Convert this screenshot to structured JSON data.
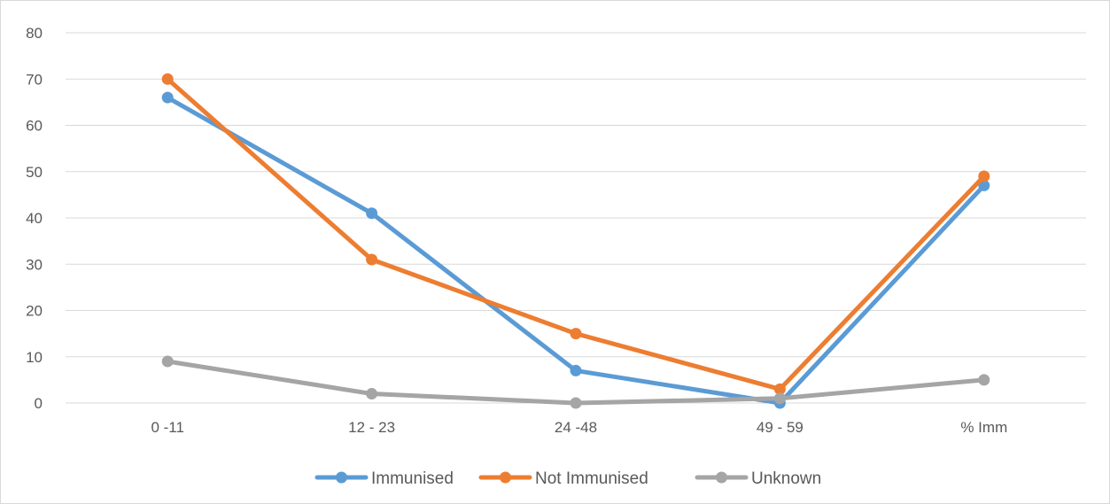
{
  "chart_data": {
    "type": "line",
    "title": "",
    "xlabel": "",
    "ylabel": "",
    "categories": [
      "0 -11",
      "12 - 23",
      "24 -48",
      "49 - 59",
      "% Imm"
    ],
    "ylim": [
      0,
      80
    ],
    "yticks": [
      0,
      10,
      20,
      30,
      40,
      50,
      60,
      70,
      80
    ],
    "grid": true,
    "legend_position": "bottom",
    "series": [
      {
        "name": "Immunised",
        "color": "#5b9bd5",
        "values": [
          66,
          41,
          7,
          0,
          47
        ]
      },
      {
        "name": "Not Immunised",
        "color": "#ed7d31",
        "values": [
          70,
          31,
          15,
          3,
          49
        ]
      },
      {
        "name": "Unknown",
        "color": "#a5a5a5",
        "values": [
          9,
          2,
          0,
          1,
          5
        ]
      }
    ]
  }
}
